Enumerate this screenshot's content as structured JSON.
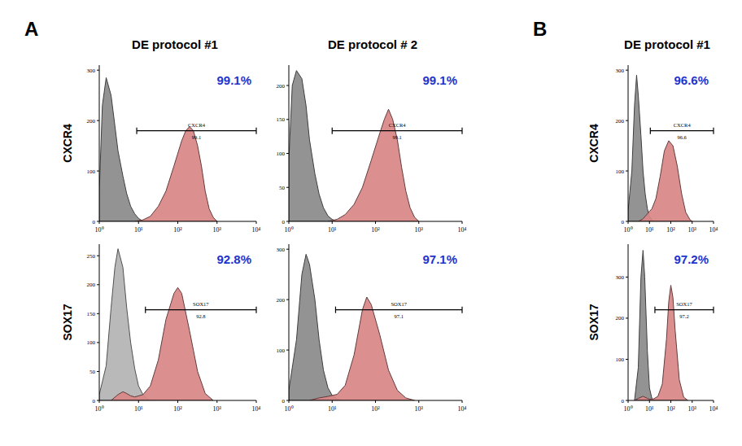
{
  "figure": {
    "panel_labels": [
      "A",
      "B"
    ],
    "column_titles": [
      "DE protocol #1",
      "DE protocol # 2",
      "DE protocol #1"
    ],
    "row_labels": [
      "CXCR4",
      "SOX17",
      "CXCR4",
      "SOX17"
    ]
  },
  "chart_data": [
    {
      "type": "area",
      "log": "x",
      "xlim": [
        1,
        10000
      ],
      "xticks": [
        {
          "value": 1,
          "label": "10⁰"
        },
        {
          "value": 10,
          "label": "10¹"
        },
        {
          "value": 100,
          "label": "10²"
        },
        {
          "value": 1000,
          "label": "10³"
        },
        {
          "value": 10000,
          "label": "10⁴"
        }
      ],
      "ylim": [
        0,
        310
      ],
      "yticks": [
        0,
        100,
        200,
        300
      ],
      "annotation": "99.1%",
      "gate": {
        "label": "CXCR4",
        "value": 99.1,
        "start": 9,
        "end": 10000
      },
      "series": [
        {
          "color": "#8a8a8a",
          "x": [
            1,
            1.2,
            1.5,
            2,
            2.5,
            3,
            4,
            5,
            6.3,
            8,
            10,
            13
          ],
          "values": [
            60,
            230,
            285,
            250,
            190,
            140,
            90,
            55,
            30,
            15,
            6,
            0
          ]
        },
        {
          "color": "#d98585",
          "x": [
            8,
            13,
            20,
            32,
            50,
            80,
            126,
            160,
            200,
            250,
            320,
            400,
            500,
            630,
            800,
            1000
          ],
          "values": [
            0,
            3,
            10,
            30,
            60,
            110,
            160,
            180,
            188,
            180,
            150,
            110,
            60,
            25,
            8,
            0
          ]
        }
      ]
    },
    {
      "type": "area",
      "log": "x",
      "xlim": [
        1,
        10000
      ],
      "xticks": [
        {
          "value": 1,
          "label": "10⁰"
        },
        {
          "value": 10,
          "label": "10¹"
        },
        {
          "value": 100,
          "label": "10²"
        },
        {
          "value": 1000,
          "label": "10³"
        },
        {
          "value": 10000,
          "label": "10⁴"
        }
      ],
      "ylim": [
        0,
        270
      ],
      "yticks": [
        0,
        50,
        100,
        150,
        200,
        250
      ],
      "annotation": "92.8%",
      "gate": {
        "label": "SOX17",
        "value": 92.8,
        "start": 15,
        "end": 10000
      },
      "series": [
        {
          "color": "#b3b3b3",
          "x": [
            1,
            1.5,
            2,
            2.5,
            3,
            4,
            5,
            6.3,
            8,
            10,
            13,
            16,
            20
          ],
          "values": [
            10,
            60,
            160,
            230,
            262,
            230,
            160,
            100,
            55,
            25,
            10,
            3,
            0
          ]
        },
        {
          "color": "#d98585",
          "x": [
            2,
            3,
            4,
            5,
            6.3,
            8,
            13,
            20,
            32,
            50,
            80,
            100,
            126,
            200,
            320,
            500,
            800
          ],
          "values": [
            0,
            10,
            15,
            12,
            8,
            6,
            10,
            25,
            70,
            140,
            185,
            195,
            185,
            120,
            50,
            12,
            0
          ]
        }
      ]
    },
    {
      "type": "area",
      "log": "x",
      "xlim": [
        1,
        10000
      ],
      "xticks": [
        {
          "value": 1,
          "label": "10⁰"
        },
        {
          "value": 10,
          "label": "10¹"
        },
        {
          "value": 100,
          "label": "10²"
        },
        {
          "value": 1000,
          "label": "10³"
        },
        {
          "value": 10000,
          "label": "10⁴"
        }
      ],
      "ylim": [
        0,
        230
      ],
      "yticks": [
        0,
        50,
        100,
        150,
        200
      ],
      "annotation": "99.1%",
      "gate": {
        "label": "CXCR4",
        "value": 99.1,
        "start": 10,
        "end": 10000
      },
      "series": [
        {
          "color": "#8a8a8a",
          "x": [
            1,
            1.2,
            1.5,
            2,
            2.5,
            3,
            4,
            5,
            6.3,
            8,
            10,
            13
          ],
          "values": [
            90,
            200,
            222,
            210,
            170,
            120,
            70,
            40,
            20,
            8,
            3,
            0
          ]
        },
        {
          "color": "#d98585",
          "x": [
            8,
            13,
            20,
            32,
            50,
            80,
            126,
            160,
            200,
            250,
            320,
            400,
            500,
            630,
            800,
            1000
          ],
          "values": [
            0,
            3,
            10,
            25,
            50,
            90,
            130,
            150,
            165,
            150,
            120,
            80,
            45,
            20,
            6,
            0
          ]
        }
      ]
    },
    {
      "type": "area",
      "log": "x",
      "xlim": [
        1,
        10000
      ],
      "xticks": [
        {
          "value": 1,
          "label": "10⁰"
        },
        {
          "value": 10,
          "label": "10¹"
        },
        {
          "value": 100,
          "label": "10²"
        },
        {
          "value": 1000,
          "label": "10³"
        },
        {
          "value": 10000,
          "label": "10⁴"
        }
      ],
      "ylim": [
        0,
        310
      ],
      "yticks": [
        0,
        100,
        200,
        300
      ],
      "annotation": "97.1%",
      "gate": {
        "label": "SOX17",
        "value": 97.1,
        "start": 12,
        "end": 10000
      },
      "series": [
        {
          "color": "#8a8a8a",
          "x": [
            1,
            1.5,
            2,
            2.5,
            3,
            4,
            5,
            6.3,
            8,
            10,
            13,
            16
          ],
          "values": [
            20,
            120,
            250,
            290,
            270,
            200,
            120,
            60,
            25,
            10,
            3,
            0
          ]
        },
        {
          "color": "#d98585",
          "x": [
            3,
            5,
            8,
            13,
            20,
            32,
            50,
            63,
            80,
            126,
            200,
            320,
            500,
            800
          ],
          "values": [
            0,
            5,
            8,
            12,
            30,
            90,
            180,
            205,
            190,
            130,
            60,
            20,
            5,
            0
          ]
        }
      ]
    },
    {
      "type": "area",
      "log": "x",
      "xlim": [
        1,
        10000
      ],
      "xticks": [
        {
          "value": 1,
          "label": "10⁰"
        },
        {
          "value": 10,
          "label": "10¹"
        },
        {
          "value": 100,
          "label": "10²"
        },
        {
          "value": 1000,
          "label": "10³"
        },
        {
          "value": 10000,
          "label": "10⁴"
        }
      ],
      "ylim": [
        0,
        310
      ],
      "yticks": [
        0,
        100,
        200,
        300
      ],
      "annotation": "96.6%",
      "gate": {
        "label": "CXCR4",
        "value": 96.6,
        "start": 11,
        "end": 10000
      },
      "series": [
        {
          "color": "#8a8a8a",
          "x": [
            1,
            1.5,
            2,
            2.5,
            3,
            4,
            5,
            6.3,
            8,
            10,
            13,
            16
          ],
          "values": [
            20,
            100,
            230,
            290,
            250,
            170,
            100,
            55,
            25,
            10,
            3,
            0
          ]
        },
        {
          "color": "#d98585",
          "x": [
            3,
            5,
            8,
            10,
            13,
            20,
            32,
            50,
            80,
            126,
            200,
            320,
            500,
            800,
            1000
          ],
          "values": [
            0,
            5,
            15,
            20,
            25,
            45,
            90,
            140,
            160,
            150,
            110,
            55,
            18,
            3,
            0
          ]
        }
      ]
    },
    {
      "type": "area",
      "log": "x",
      "xlim": [
        1,
        10000
      ],
      "xticks": [
        {
          "value": 1,
          "label": "10⁰"
        },
        {
          "value": 10,
          "label": "10¹"
        },
        {
          "value": 100,
          "label": "10²"
        },
        {
          "value": 1000,
          "label": "10³"
        },
        {
          "value": 10000,
          "label": "10⁴"
        }
      ],
      "ylim": [
        0,
        380
      ],
      "yticks": [
        0,
        100,
        200,
        300
      ],
      "annotation": "97.2%",
      "gate": {
        "label": "SOX17",
        "value": 97.2,
        "start": 18,
        "end": 10000
      },
      "series": [
        {
          "color": "#8a8a8a",
          "x": [
            2,
            3,
            4,
            5,
            6,
            8,
            10,
            13,
            16
          ],
          "values": [
            0,
            80,
            300,
            365,
            300,
            120,
            30,
            5,
            0
          ]
        },
        {
          "color": "#d98585",
          "x": [
            2,
            3,
            5,
            8,
            10,
            16,
            25,
            40,
            63,
            80,
            100,
            126,
            160,
            250,
            400,
            630
          ],
          "values": [
            0,
            5,
            10,
            5,
            3,
            4,
            10,
            40,
            150,
            240,
            280,
            250,
            170,
            50,
            8,
            0
          ]
        }
      ]
    }
  ]
}
